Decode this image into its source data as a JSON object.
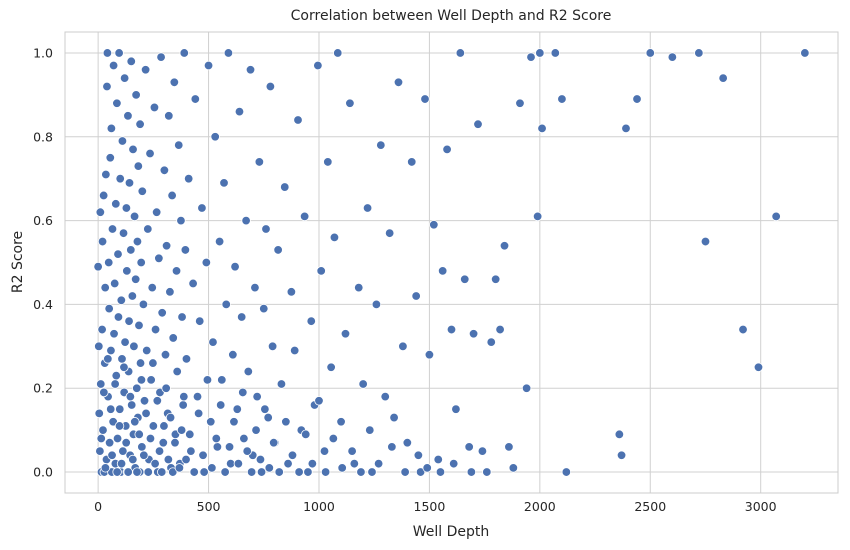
{
  "chart_data": {
    "type": "scatter",
    "title": "Correlation between Well Depth and R2 Score",
    "xlabel": "Well Depth",
    "ylabel": "R2 Score",
    "xlim": [
      -150,
      3350
    ],
    "ylim": [
      -0.05,
      1.05
    ],
    "xticks": [
      0,
      500,
      1000,
      1500,
      2000,
      2500,
      3000
    ],
    "yticks": [
      0.0,
      0.2,
      0.4,
      0.6,
      0.8,
      1.0
    ],
    "grid": true,
    "color": "#4c72b0",
    "points": [
      [
        0,
        0.49
      ],
      [
        3,
        0.3
      ],
      [
        5,
        0.14
      ],
      [
        8,
        0.05
      ],
      [
        10,
        0.62
      ],
      [
        12,
        0.21
      ],
      [
        15,
        0.0
      ],
      [
        18,
        0.34
      ],
      [
        20,
        0.55
      ],
      [
        22,
        0.1
      ],
      [
        25,
        0.66
      ],
      [
        28,
        0.0
      ],
      [
        30,
        0.26
      ],
      [
        32,
        0.44
      ],
      [
        35,
        0.71
      ],
      [
        38,
        0.03
      ],
      [
        40,
        0.92
      ],
      [
        42,
        1.0
      ],
      [
        45,
        0.18
      ],
      [
        48,
        0.5
      ],
      [
        50,
        0.39
      ],
      [
        52,
        0.07
      ],
      [
        55,
        0.75
      ],
      [
        58,
        0.29
      ],
      [
        60,
        0.82
      ],
      [
        62,
        0.0
      ],
      [
        65,
        0.58
      ],
      [
        68,
        0.12
      ],
      [
        70,
        0.97
      ],
      [
        72,
        0.33
      ],
      [
        75,
        0.45
      ],
      [
        78,
        0.02
      ],
      [
        80,
        0.64
      ],
      [
        82,
        0.23
      ],
      [
        85,
        0.88
      ],
      [
        88,
        0.08
      ],
      [
        90,
        0.52
      ],
      [
        92,
        0.37
      ],
      [
        95,
        1.0
      ],
      [
        98,
        0.15
      ],
      [
        100,
        0.7
      ],
      [
        103,
        0.0
      ],
      [
        105,
        0.41
      ],
      [
        108,
        0.27
      ],
      [
        110,
        0.79
      ],
      [
        112,
        0.05
      ],
      [
        115,
        0.57
      ],
      [
        118,
        0.19
      ],
      [
        120,
        0.94
      ],
      [
        122,
        0.31
      ],
      [
        125,
        0.11
      ],
      [
        128,
        0.63
      ],
      [
        130,
        0.48
      ],
      [
        132,
        0.0
      ],
      [
        135,
        0.85
      ],
      [
        138,
        0.24
      ],
      [
        140,
        0.36
      ],
      [
        142,
        0.69
      ],
      [
        145,
        0.04
      ],
      [
        148,
        0.53
      ],
      [
        150,
        0.98
      ],
      [
        152,
        0.16
      ],
      [
        155,
        0.42
      ],
      [
        158,
        0.77
      ],
      [
        160,
        0.09
      ],
      [
        162,
        0.3
      ],
      [
        165,
        0.61
      ],
      [
        168,
        0.01
      ],
      [
        170,
        0.46
      ],
      [
        172,
        0.9
      ],
      [
        175,
        0.2
      ],
      [
        178,
        0.55
      ],
      [
        180,
        0.13
      ],
      [
        182,
        0.73
      ],
      [
        185,
        0.35
      ],
      [
        188,
        0.0
      ],
      [
        190,
        0.83
      ],
      [
        192,
        0.26
      ],
      [
        195,
        0.5
      ],
      [
        198,
        0.06
      ],
      [
        200,
        0.67
      ],
      [
        205,
        0.4
      ],
      [
        210,
        0.17
      ],
      [
        215,
        0.96
      ],
      [
        220,
        0.29
      ],
      [
        225,
        0.58
      ],
      [
        230,
        0.03
      ],
      [
        235,
        0.76
      ],
      [
        240,
        0.22
      ],
      [
        245,
        0.44
      ],
      [
        250,
        0.11
      ],
      [
        255,
        0.87
      ],
      [
        260,
        0.34
      ],
      [
        265,
        0.62
      ],
      [
        270,
        0.0
      ],
      [
        275,
        0.51
      ],
      [
        280,
        0.19
      ],
      [
        285,
        0.99
      ],
      [
        290,
        0.38
      ],
      [
        295,
        0.07
      ],
      [
        300,
        0.72
      ],
      [
        305,
        0.28
      ],
      [
        310,
        0.54
      ],
      [
        315,
        0.14
      ],
      [
        320,
        0.85
      ],
      [
        325,
        0.43
      ],
      [
        330,
        0.01
      ],
      [
        335,
        0.66
      ],
      [
        340,
        0.32
      ],
      [
        345,
        0.93
      ],
      [
        350,
        0.09
      ],
      [
        355,
        0.48
      ],
      [
        360,
        0.24
      ],
      [
        365,
        0.78
      ],
      [
        370,
        0.02
      ],
      [
        375,
        0.6
      ],
      [
        380,
        0.37
      ],
      [
        385,
        0.16
      ],
      [
        390,
        1.0
      ],
      [
        395,
        0.53
      ],
      [
        400,
        0.27
      ],
      [
        410,
        0.7
      ],
      [
        420,
        0.05
      ],
      [
        430,
        0.45
      ],
      [
        440,
        0.89
      ],
      [
        450,
        0.18
      ],
      [
        460,
        0.36
      ],
      [
        470,
        0.63
      ],
      [
        480,
        0.0
      ],
      [
        490,
        0.5
      ],
      [
        500,
        0.97
      ],
      [
        510,
        0.12
      ],
      [
        520,
        0.31
      ],
      [
        530,
        0.8
      ],
      [
        540,
        0.06
      ],
      [
        550,
        0.55
      ],
      [
        560,
        0.22
      ],
      [
        570,
        0.69
      ],
      [
        580,
        0.4
      ],
      [
        590,
        1.0
      ],
      [
        600,
        0.02
      ],
      [
        610,
        0.28
      ],
      [
        620,
        0.49
      ],
      [
        630,
        0.15
      ],
      [
        640,
        0.86
      ],
      [
        650,
        0.37
      ],
      [
        660,
        0.08
      ],
      [
        670,
        0.6
      ],
      [
        680,
        0.24
      ],
      [
        690,
        0.96
      ],
      [
        700,
        0.04
      ],
      [
        710,
        0.44
      ],
      [
        720,
        0.18
      ],
      [
        730,
        0.74
      ],
      [
        740,
        0.0
      ],
      [
        750,
        0.39
      ],
      [
        760,
        0.58
      ],
      [
        770,
        0.13
      ],
      [
        780,
        0.92
      ],
      [
        790,
        0.3
      ],
      [
        800,
        0.07
      ],
      [
        815,
        0.53
      ],
      [
        830,
        0.21
      ],
      [
        845,
        0.68
      ],
      [
        860,
        0.02
      ],
      [
        875,
        0.43
      ],
      [
        890,
        0.29
      ],
      [
        905,
        0.84
      ],
      [
        920,
        0.1
      ],
      [
        935,
        0.61
      ],
      [
        950,
        0.0
      ],
      [
        965,
        0.36
      ],
      [
        980,
        0.16
      ],
      [
        995,
        0.97
      ],
      [
        1010,
        0.48
      ],
      [
        1025,
        0.05
      ],
      [
        1040,
        0.74
      ],
      [
        1055,
        0.25
      ],
      [
        1070,
        0.56
      ],
      [
        1085,
        1.0
      ],
      [
        1100,
        0.12
      ],
      [
        1120,
        0.33
      ],
      [
        1140,
        0.88
      ],
      [
        1160,
        0.02
      ],
      [
        1180,
        0.44
      ],
      [
        1200,
        0.21
      ],
      [
        1220,
        0.63
      ],
      [
        1240,
        0.0
      ],
      [
        1260,
        0.4
      ],
      [
        1280,
        0.78
      ],
      [
        1300,
        0.18
      ],
      [
        1320,
        0.57
      ],
      [
        1340,
        0.13
      ],
      [
        1360,
        0.93
      ],
      [
        1380,
        0.3
      ],
      [
        1400,
        0.07
      ],
      [
        1420,
        0.74
      ],
      [
        1440,
        0.42
      ],
      [
        1460,
        0.0
      ],
      [
        1480,
        0.89
      ],
      [
        1500,
        0.28
      ],
      [
        1520,
        0.59
      ],
      [
        1540,
        0.03
      ],
      [
        1560,
        0.48
      ],
      [
        1580,
        0.77
      ],
      [
        1600,
        0.34
      ],
      [
        1620,
        0.15
      ],
      [
        1640,
        1.0
      ],
      [
        1660,
        0.46
      ],
      [
        1680,
        0.06
      ],
      [
        1700,
        0.33
      ],
      [
        1720,
        0.83
      ],
      [
        1740,
        0.05
      ],
      [
        1760,
        0.0
      ],
      [
        1780,
        0.31
      ],
      [
        1800,
        0.46
      ],
      [
        1820,
        0.34
      ],
      [
        1840,
        0.54
      ],
      [
        1860,
        0.06
      ],
      [
        1880,
        0.01
      ],
      [
        1910,
        0.88
      ],
      [
        1940,
        0.2
      ],
      [
        1960,
        0.99
      ],
      [
        1990,
        0.61
      ],
      [
        2000,
        1.0
      ],
      [
        2010,
        0.82
      ],
      [
        2070,
        1.0
      ],
      [
        2100,
        0.89
      ],
      [
        2120,
        0.0
      ],
      [
        2360,
        0.09
      ],
      [
        2370,
        0.04
      ],
      [
        2390,
        0.82
      ],
      [
        2440,
        0.89
      ],
      [
        2500,
        1.0
      ],
      [
        2600,
        0.99
      ],
      [
        2720,
        1.0
      ],
      [
        2750,
        0.55
      ],
      [
        2830,
        0.94
      ],
      [
        2920,
        0.34
      ],
      [
        2990,
        0.25
      ],
      [
        3070,
        0.61
      ],
      [
        3200,
        1.0
      ],
      [
        14,
        0.08
      ],
      [
        26,
        0.19
      ],
      [
        33,
        0.01
      ],
      [
        44,
        0.27
      ],
      [
        57,
        0.15
      ],
      [
        63,
        0.04
      ],
      [
        77,
        0.21
      ],
      [
        86,
        0.0
      ],
      [
        97,
        0.11
      ],
      [
        106,
        0.02
      ],
      [
        117,
        0.25
      ],
      [
        127,
        0.07
      ],
      [
        136,
        0.0
      ],
      [
        146,
        0.18
      ],
      [
        157,
        0.03
      ],
      [
        166,
        0.12
      ],
      [
        176,
        0.0
      ],
      [
        186,
        0.09
      ],
      [
        196,
        0.22
      ],
      [
        207,
        0.04
      ],
      [
        217,
        0.14
      ],
      [
        227,
        0.0
      ],
      [
        237,
        0.08
      ],
      [
        248,
        0.26
      ],
      [
        258,
        0.02
      ],
      [
        268,
        0.17
      ],
      [
        278,
        0.05
      ],
      [
        288,
        0.0
      ],
      [
        298,
        0.11
      ],
      [
        308,
        0.2
      ],
      [
        318,
        0.03
      ],
      [
        328,
        0.13
      ],
      [
        338,
        0.0
      ],
      [
        348,
        0.07
      ],
      [
        358,
        0.24
      ],
      [
        368,
        0.01
      ],
      [
        378,
        0.1
      ],
      [
        388,
        0.18
      ],
      [
        398,
        0.03
      ],
      [
        415,
        0.09
      ],
      [
        435,
        0.0
      ],
      [
        455,
        0.14
      ],
      [
        475,
        0.04
      ],
      [
        495,
        0.22
      ],
      [
        515,
        0.01
      ],
      [
        535,
        0.08
      ],
      [
        555,
        0.16
      ],
      [
        575,
        0.0
      ],
      [
        595,
        0.06
      ],
      [
        615,
        0.12
      ],
      [
        635,
        0.02
      ],
      [
        655,
        0.19
      ],
      [
        675,
        0.05
      ],
      [
        695,
        0.0
      ],
      [
        715,
        0.1
      ],
      [
        735,
        0.03
      ],
      [
        755,
        0.15
      ],
      [
        775,
        0.01
      ],
      [
        795,
        0.07
      ],
      [
        820,
        0.0
      ],
      [
        850,
        0.12
      ],
      [
        880,
        0.04
      ],
      [
        910,
        0.0
      ],
      [
        940,
        0.09
      ],
      [
        970,
        0.02
      ],
      [
        1000,
        0.17
      ],
      [
        1030,
        0.0
      ],
      [
        1065,
        0.08
      ],
      [
        1105,
        0.01
      ],
      [
        1150,
        0.05
      ],
      [
        1190,
        0.0
      ],
      [
        1230,
        0.1
      ],
      [
        1270,
        0.02
      ],
      [
        1330,
        0.06
      ],
      [
        1390,
        0.0
      ],
      [
        1450,
        0.04
      ],
      [
        1490,
        0.01
      ],
      [
        1550,
        0.0
      ],
      [
        1610,
        0.02
      ],
      [
        1690,
        0.0
      ]
    ]
  }
}
